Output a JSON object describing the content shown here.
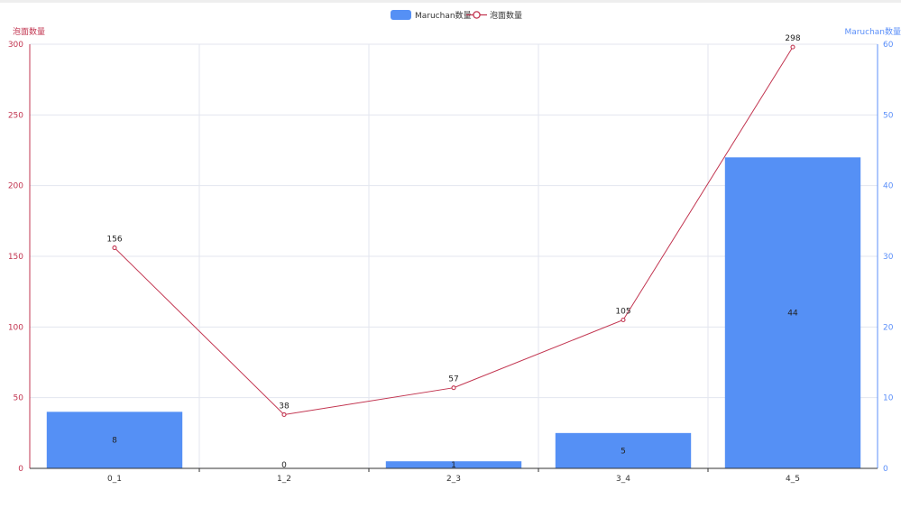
{
  "chart_data": {
    "type": "bar",
    "categories": [
      "0_1",
      "1_2",
      "2_3",
      "3_4",
      "4_5"
    ],
    "series": [
      {
        "name": "Maruchan数量",
        "type": "bar",
        "axis": "right",
        "values": [
          8,
          0,
          1,
          5,
          44
        ],
        "color": "#5470c6"
      },
      {
        "name": "泡面数量",
        "type": "line",
        "axis": "left",
        "values": [
          156,
          38,
          57,
          105,
          298
        ],
        "color": "#c23550"
      }
    ],
    "left_axis": {
      "label": "泡面数量",
      "ticks": [
        0,
        50,
        100,
        150,
        200,
        250,
        300
      ],
      "ylim": [
        0,
        300
      ],
      "color": "#c23550"
    },
    "right_axis": {
      "label": "Maruchan数量",
      "ticks": [
        0,
        10,
        20,
        30,
        40,
        50,
        60
      ],
      "ylim": [
        0,
        60
      ],
      "color": "#5b8ff9"
    },
    "legend": {
      "placement": "top-center"
    },
    "grid": true
  }
}
